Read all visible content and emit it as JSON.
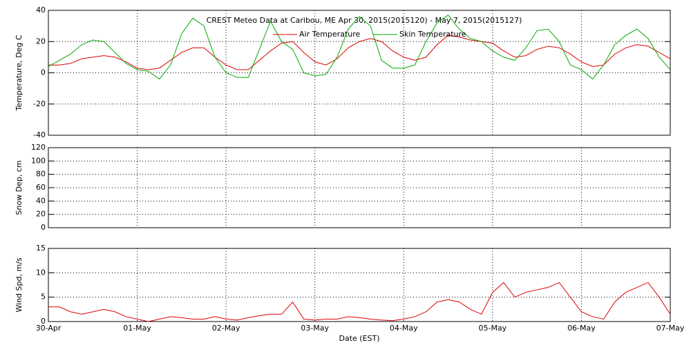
{
  "chart_data": [
    {
      "type": "line",
      "title": "CREST Meteo Data at Caribou, ME   Apr 30, 2015(2015120) - May  7, 2015(2015127)",
      "ylabel": "Temperature, Deg C",
      "xlim": [
        0,
        7
      ],
      "ylim": [
        -40,
        40
      ],
      "yticks": [
        -40,
        -20,
        0,
        20,
        40
      ],
      "grid": true,
      "x": [
        0,
        0.125,
        0.25,
        0.375,
        0.5,
        0.625,
        0.75,
        0.875,
        1,
        1.125,
        1.25,
        1.375,
        1.5,
        1.625,
        1.75,
        1.875,
        2,
        2.125,
        2.25,
        2.375,
        2.5,
        2.625,
        2.75,
        2.875,
        3,
        3.125,
        3.25,
        3.375,
        3.5,
        3.625,
        3.75,
        3.875,
        4,
        4.125,
        4.25,
        4.375,
        4.5,
        4.625,
        4.75,
        4.875,
        5,
        5.125,
        5.25,
        5.375,
        5.5,
        5.625,
        5.75,
        5.875,
        6,
        6.125,
        6.25,
        6.375,
        6.5,
        6.625,
        6.75,
        6.875,
        7
      ],
      "series": [
        {
          "name": "Air Temperature",
          "color": "#dd0000",
          "values": [
            5,
            5,
            6,
            9,
            10,
            11,
            10,
            7,
            3,
            2,
            3,
            8,
            13,
            16,
            16,
            10,
            5,
            2,
            2,
            8,
            14,
            19,
            20,
            13,
            7,
            5,
            9,
            16,
            20,
            22,
            20,
            14,
            10,
            8,
            10,
            18,
            24,
            23,
            21,
            20,
            19,
            14,
            10,
            11,
            15,
            17,
            16,
            12,
            7,
            4,
            5,
            12,
            16,
            18,
            17,
            13,
            9
          ]
        },
        {
          "name": "Skin Temperature",
          "color": "#00aa00",
          "values": [
            4,
            8,
            12,
            18,
            21,
            20,
            13,
            6,
            2,
            1,
            -4,
            5,
            25,
            35,
            30,
            10,
            0,
            -3,
            -3,
            15,
            33,
            20,
            15,
            0,
            -2,
            -1,
            10,
            28,
            36,
            30,
            8,
            3,
            3,
            5,
            20,
            32,
            37,
            28,
            22,
            20,
            14,
            10,
            8,
            16,
            27,
            28,
            20,
            5,
            2,
            -4,
            5,
            18,
            24,
            28,
            22,
            10,
            2
          ]
        }
      ]
    },
    {
      "type": "line",
      "ylabel": "Snow Dep, cm",
      "xlim": [
        0,
        7
      ],
      "ylim": [
        0,
        120
      ],
      "yticks": [
        0,
        20,
        40,
        60,
        80,
        100,
        120
      ],
      "grid": true
    },
    {
      "type": "line",
      "ylabel": "Wind Spd, m/s",
      "xlabel": "Date (EST)",
      "xlim": [
        0,
        7
      ],
      "ylim": [
        0,
        15
      ],
      "yticks": [
        0,
        5,
        10,
        15
      ],
      "grid": true,
      "xticks": [
        {
          "value": 0,
          "label": "30-Apr"
        },
        {
          "value": 1,
          "label": "01-May"
        },
        {
          "value": 2,
          "label": "02-May"
        },
        {
          "value": 3,
          "label": "03-May"
        },
        {
          "value": 4,
          "label": "04-May"
        },
        {
          "value": 5,
          "label": "05-May"
        },
        {
          "value": 6,
          "label": "06-May"
        },
        {
          "value": 7,
          "label": "07-May"
        }
      ],
      "x": [
        0,
        0.125,
        0.25,
        0.375,
        0.5,
        0.625,
        0.75,
        0.875,
        1,
        1.125,
        1.25,
        1.375,
        1.5,
        1.625,
        1.75,
        1.875,
        2,
        2.125,
        2.25,
        2.375,
        2.5,
        2.625,
        2.75,
        2.875,
        3,
        3.125,
        3.25,
        3.375,
        3.5,
        3.625,
        3.75,
        3.875,
        4,
        4.125,
        4.25,
        4.375,
        4.5,
        4.625,
        4.75,
        4.875,
        5,
        5.125,
        5.25,
        5.375,
        5.5,
        5.625,
        5.75,
        5.875,
        6,
        6.125,
        6.25,
        6.375,
        6.5,
        6.625,
        6.75,
        6.875,
        7
      ],
      "series": [
        {
          "name": "Wind Speed",
          "color": "#dd0000",
          "values": [
            3,
            3,
            2,
            1.5,
            2,
            2.5,
            2,
            1,
            0.5,
            0,
            0.5,
            1,
            0.8,
            0.5,
            0.5,
            1,
            0.5,
            0.3,
            0.8,
            1.2,
            1.5,
            1.5,
            4,
            0.5,
            0.3,
            0.5,
            0.5,
            1,
            0.8,
            0.5,
            0.3,
            0.2,
            0.5,
            1,
            2,
            4,
            4.5,
            4,
            2.5,
            1.5,
            6,
            8,
            5,
            6,
            6.5,
            7,
            8,
            5,
            2,
            1,
            0.5,
            4,
            6,
            7,
            8,
            5,
            1.5
          ]
        }
      ]
    }
  ]
}
